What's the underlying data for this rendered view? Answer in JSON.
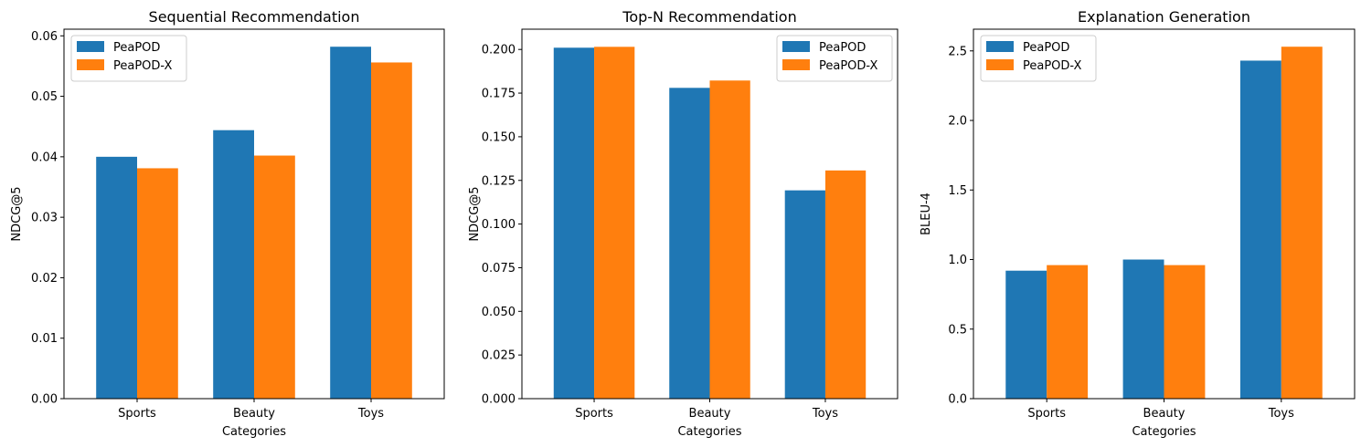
{
  "colors": {
    "series_1": "#1f77b4",
    "series_2": "#ff7f0e"
  },
  "chart_data": [
    {
      "type": "bar",
      "title": "Sequential Recommendation",
      "xlabel": "Categories",
      "ylabel": "NDCG@5",
      "categories": [
        "Sports",
        "Beauty",
        "Toys"
      ],
      "series": [
        {
          "name": "PeaPOD",
          "values": [
            0.04,
            0.0444,
            0.0582
          ]
        },
        {
          "name": "PeaPOD-X",
          "values": [
            0.0381,
            0.0402,
            0.0556
          ]
        }
      ],
      "ylim": [
        0,
        0.0611
      ],
      "yticks": [
        0.0,
        0.01,
        0.02,
        0.03,
        0.04,
        0.05,
        0.06
      ],
      "ytick_labels": [
        "0.00",
        "0.01",
        "0.02",
        "0.03",
        "0.04",
        "0.05",
        "0.06"
      ],
      "legend": "upper-left",
      "grid": false
    },
    {
      "type": "bar",
      "title": "Top-N Recommendation",
      "xlabel": "Categories",
      "ylabel": "NDCG@5",
      "categories": [
        "Sports",
        "Beauty",
        "Toys"
      ],
      "series": [
        {
          "name": "PeaPOD",
          "values": [
            0.201,
            0.178,
            0.1193
          ]
        },
        {
          "name": "PeaPOD-X",
          "values": [
            0.2015,
            0.1822,
            0.1307
          ]
        }
      ],
      "ylim": [
        0,
        0.2116
      ],
      "yticks": [
        0.0,
        0.025,
        0.05,
        0.075,
        0.1,
        0.125,
        0.15,
        0.175,
        0.2
      ],
      "ytick_labels": [
        "0.000",
        "0.025",
        "0.050",
        "0.075",
        "0.100",
        "0.125",
        "0.150",
        "0.175",
        "0.200"
      ],
      "legend": "upper-right",
      "grid": false
    },
    {
      "type": "bar",
      "title": "Explanation Generation",
      "xlabel": "Categories",
      "ylabel": "BLEU-4",
      "categories": [
        "Sports",
        "Beauty",
        "Toys"
      ],
      "series": [
        {
          "name": "PeaPOD",
          "values": [
            0.92,
            1.0,
            2.43
          ]
        },
        {
          "name": "PeaPOD-X",
          "values": [
            0.96,
            0.96,
            2.53
          ]
        }
      ],
      "ylim": [
        0,
        2.656
      ],
      "yticks": [
        0.0,
        0.5,
        1.0,
        1.5,
        2.0,
        2.5
      ],
      "ytick_labels": [
        "0.0",
        "0.5",
        "1.0",
        "1.5",
        "2.0",
        "2.5"
      ],
      "legend": "upper-left",
      "grid": false
    }
  ]
}
